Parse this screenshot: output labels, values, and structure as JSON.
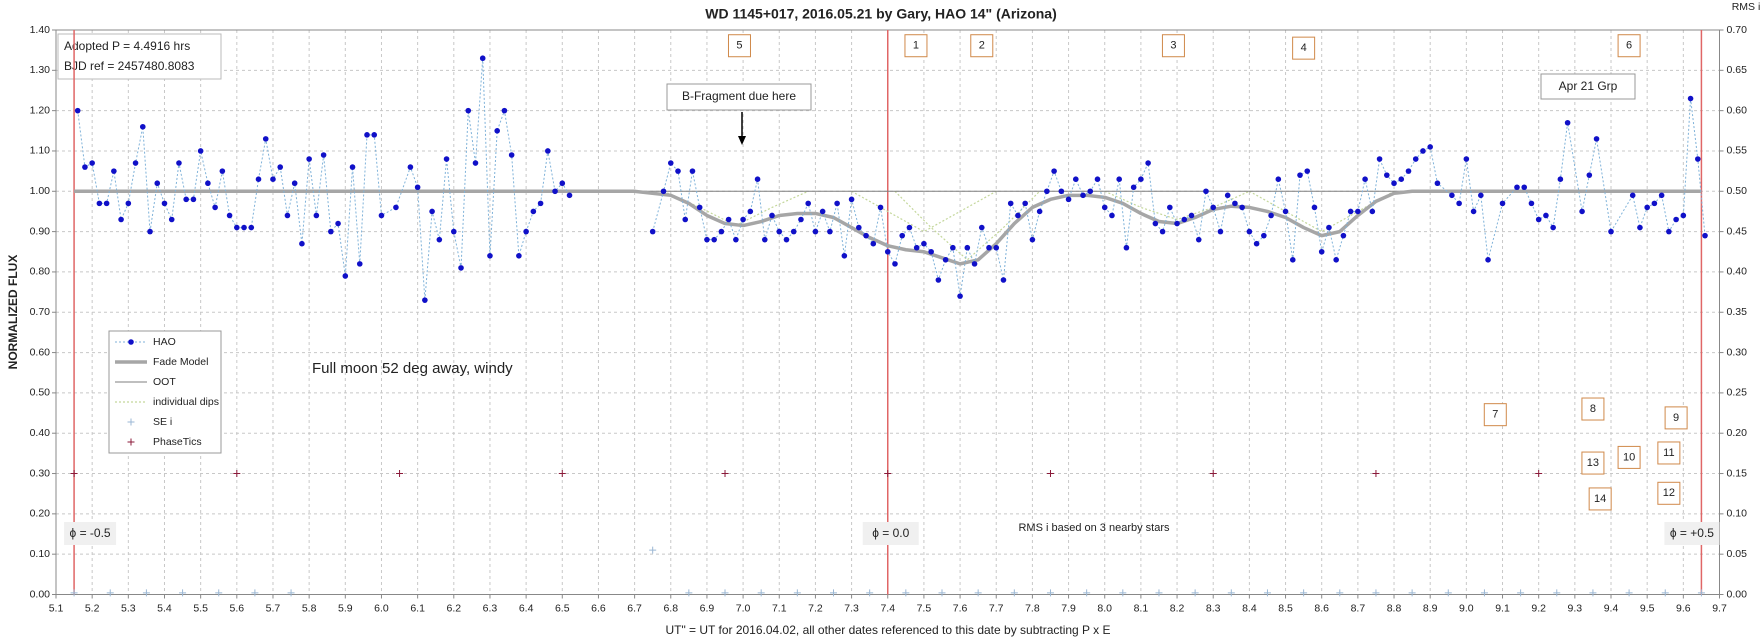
{
  "chart_data": {
    "type": "scatter",
    "title": "WD 1145+017,  2016.05.21  by Gary, HAO  14\" (Arizona)",
    "xlabel": "UT\" = UT for 2016.04.02, all other dates referenced to this date by subtracting P x E",
    "ylabel": "NORMALIZED FLUX",
    "y2label": "RMS i",
    "xlim": [
      5.1,
      9.7
    ],
    "ylim": [
      0,
      1.4
    ],
    "y2lim": [
      0,
      0.7
    ],
    "grid": true,
    "legend": "left",
    "xticks": [
      5.1,
      5.2,
      5.3,
      5.4,
      5.5,
      5.6,
      5.7,
      5.8,
      5.9,
      {
        "value": 6,
        "label": "6.0"
      },
      6.1,
      6.2,
      6.3,
      6.4,
      6.5,
      6.6,
      6.7,
      6.8,
      6.9,
      {
        "value": 7,
        "label": "7.0"
      },
      7.1,
      7.2,
      7.3,
      7.4,
      7.5,
      7.6,
      7.7,
      7.8,
      7.9,
      {
        "value": 8,
        "label": "8.0"
      },
      8.1,
      8.2,
      8.3,
      8.4,
      8.5,
      8.6,
      8.7,
      8.8,
      8.9,
      {
        "value": 9,
        "label": "9.0"
      },
      9.1,
      9.2,
      9.3,
      9.4,
      9.5,
      9.6,
      9.7
    ],
    "yticks": [
      {
        "value": 0,
        "label": "0.00"
      },
      {
        "value": 0.1,
        "label": "0.10"
      },
      {
        "value": 0.2,
        "label": "0.20"
      },
      {
        "value": 0.3,
        "label": "0.30"
      },
      {
        "value": 0.4,
        "label": "0.40"
      },
      {
        "value": 0.5,
        "label": "0.50"
      },
      {
        "value": 0.6,
        "label": "0.60"
      },
      {
        "value": 0.7,
        "label": "0.70"
      },
      {
        "value": 0.8,
        "label": "0.80"
      },
      {
        "value": 0.9,
        "label": "0.90"
      },
      {
        "value": 1,
        "label": "1.00"
      },
      {
        "value": 1.1,
        "label": "1.10"
      },
      {
        "value": 1.2,
        "label": "1.20"
      },
      {
        "value": 1.3,
        "label": "1.30"
      },
      {
        "value": 1.4,
        "label": "1.40"
      }
    ],
    "y2ticks": [
      {
        "value": 0,
        "label": "0.00"
      },
      {
        "value": 0.05,
        "label": "0.05"
      },
      {
        "value": 0.1,
        "label": "0.10"
      },
      {
        "value": 0.15,
        "label": "0.15"
      },
      {
        "value": 0.2,
        "label": "0.20"
      },
      {
        "value": 0.25,
        "label": "0.25"
      },
      {
        "value": 0.3,
        "label": "0.30"
      },
      {
        "value": 0.35,
        "label": "0.35"
      },
      {
        "value": 0.4,
        "label": "0.40"
      },
      {
        "value": 0.45,
        "label": "0.45"
      },
      {
        "value": 0.5,
        "label": "0.50"
      },
      {
        "value": 0.55,
        "label": "0.55"
      },
      {
        "value": 0.6,
        "label": "0.60"
      },
      {
        "value": 0.65,
        "label": "0.65"
      },
      {
        "value": 0.7,
        "label": "0.70"
      }
    ],
    "series": [
      {
        "name": "HAO",
        "color": "#1010c8",
        "line_color": "#7fb2d9",
        "marker": "circle",
        "line": "dotted",
        "line_width": 1,
        "x": [
          5.16,
          5.18,
          5.2,
          5.22,
          5.24,
          5.26,
          5.28,
          5.3,
          5.32,
          5.34,
          5.36,
          5.38,
          5.4,
          5.42,
          5.44,
          5.46,
          5.48,
          5.5,
          5.52,
          5.54,
          5.56,
          5.58,
          5.6,
          5.62,
          5.64,
          5.66,
          5.68,
          5.7,
          5.72,
          5.74,
          5.76,
          5.78,
          5.8,
          5.82,
          5.84,
          5.86,
          5.88,
          5.9,
          5.92,
          5.94,
          5.96,
          5.98,
          6.0,
          6.04,
          6.08,
          6.1,
          6.12,
          6.14,
          6.16,
          6.18,
          6.2,
          6.22,
          6.24,
          6.26,
          6.28,
          6.3,
          6.32,
          6.34,
          6.36,
          6.38,
          6.4,
          6.42,
          6.44,
          6.46,
          6.48,
          6.5,
          6.52,
          null,
          6.75,
          6.78,
          6.8,
          6.82,
          6.84,
          6.86,
          6.88,
          6.9,
          6.92,
          6.94,
          6.96,
          6.98,
          7.0,
          7.02,
          7.04,
          7.06,
          7.08,
          7.1,
          7.12,
          7.14,
          7.16,
          7.18,
          7.2,
          7.22,
          7.24,
          7.26,
          7.28,
          7.3,
          7.32,
          7.34,
          7.36,
          7.38,
          7.4,
          7.42,
          7.44,
          7.46,
          7.48,
          7.5,
          7.52,
          7.54,
          7.56,
          7.58,
          7.6,
          7.62,
          7.64,
          7.66,
          7.68,
          7.7,
          7.72,
          7.74,
          7.76,
          7.78,
          7.8,
          7.82,
          7.84,
          7.86,
          7.88,
          7.9,
          7.92,
          7.94,
          7.96,
          7.98,
          8.0,
          8.02,
          8.04,
          8.06,
          8.08,
          8.1,
          8.12,
          8.14,
          8.16,
          8.18,
          8.2,
          8.22,
          8.24,
          8.26,
          8.28,
          8.3,
          8.32,
          8.34,
          8.36,
          8.38,
          8.4,
          8.42,
          8.44,
          8.46,
          8.48,
          8.5,
          8.52,
          8.54,
          8.56,
          8.58,
          8.6,
          8.62,
          8.64,
          8.66,
          8.68,
          8.7,
          8.72,
          8.74,
          8.76,
          8.78,
          8.8,
          8.82,
          8.84,
          8.86,
          8.88,
          8.9,
          8.92,
          8.96,
          8.98,
          9.0,
          9.02,
          9.04,
          9.06,
          9.1,
          9.14,
          9.16,
          9.18,
          9.2,
          9.22,
          9.24,
          9.26,
          9.28,
          9.32,
          9.34,
          9.36,
          9.4,
          9.46,
          9.48,
          9.5,
          9.52,
          9.54,
          9.56,
          9.58,
          9.6,
          9.62,
          9.64,
          9.66
        ],
        "values": [
          1.2,
          1.06,
          1.07,
          0.97,
          0.97,
          1.05,
          0.93,
          0.97,
          1.07,
          1.16,
          0.9,
          1.02,
          0.97,
          0.93,
          1.07,
          0.98,
          0.98,
          1.1,
          1.02,
          0.96,
          1.05,
          0.94,
          0.91,
          0.91,
          0.91,
          1.03,
          1.13,
          1.03,
          1.06,
          0.94,
          1.02,
          0.87,
          1.08,
          0.94,
          1.09,
          0.9,
          0.92,
          0.79,
          1.06,
          0.82,
          1.14,
          1.14,
          0.94,
          0.96,
          1.06,
          1.01,
          0.73,
          0.95,
          0.88,
          1.08,
          0.9,
          0.81,
          1.2,
          1.07,
          1.33,
          0.84,
          1.15,
          1.2,
          1.09,
          0.84,
          0.9,
          0.95,
          0.97,
          1.1,
          1.0,
          1.02,
          0.99,
          null,
          0.9,
          1.0,
          1.07,
          1.05,
          0.93,
          1.05,
          0.96,
          0.88,
          0.88,
          0.9,
          0.93,
          0.88,
          0.93,
          0.95,
          1.03,
          0.88,
          0.94,
          0.9,
          0.88,
          0.9,
          0.93,
          0.97,
          0.9,
          0.95,
          0.9,
          0.97,
          0.84,
          0.98,
          0.91,
          0.89,
          0.87,
          0.96,
          0.85,
          0.82,
          0.89,
          0.91,
          0.86,
          0.87,
          0.85,
          0.78,
          0.83,
          0.86,
          0.74,
          0.86,
          0.82,
          0.91,
          0.86,
          0.86,
          0.78,
          0.97,
          0.94,
          0.97,
          0.88,
          0.95,
          1.0,
          1.05,
          1.0,
          0.98,
          1.03,
          0.99,
          1.0,
          1.03,
          0.96,
          0.94,
          1.03,
          0.86,
          1.01,
          1.03,
          1.07,
          0.92,
          0.9,
          0.96,
          0.92,
          0.93,
          0.94,
          0.88,
          1.0,
          0.96,
          0.9,
          0.99,
          0.97,
          0.96,
          0.9,
          0.87,
          0.89,
          0.94,
          1.03,
          0.95,
          0.83,
          1.04,
          1.05,
          0.96,
          0.85,
          0.91,
          0.83,
          0.89,
          0.95,
          0.95,
          1.03,
          0.95,
          1.08,
          1.04,
          1.02,
          1.03,
          1.05,
          1.08,
          1.1,
          1.11,
          1.02,
          0.99,
          0.97,
          1.08,
          0.95,
          0.99,
          0.83,
          0.97,
          1.01,
          1.01,
          0.97,
          0.93,
          0.94,
          0.91,
          1.03,
          1.17,
          0.95,
          1.04,
          1.13,
          0.9,
          0.99,
          0.91,
          0.96,
          0.97,
          0.99,
          0.9,
          0.93,
          0.94,
          1.23,
          1.08,
          0.89
        ]
      },
      {
        "name": "Fade Model",
        "color": "#a6a6a6",
        "marker": null,
        "line": "solid",
        "line_width": 3.5,
        "x": [
          5.15,
          6.7,
          6.8,
          6.85,
          6.9,
          6.95,
          7.0,
          7.05,
          7.1,
          7.15,
          7.2,
          7.25,
          7.3,
          7.35,
          7.4,
          7.45,
          7.5,
          7.55,
          7.6,
          7.65,
          7.7,
          7.75,
          7.8,
          7.85,
          7.9,
          7.95,
          8.0,
          8.05,
          8.1,
          8.15,
          8.2,
          8.25,
          8.3,
          8.35,
          8.4,
          8.45,
          8.5,
          8.55,
          8.6,
          8.65,
          8.7,
          8.75,
          8.8,
          8.85,
          8.9,
          9.65
        ],
        "values": [
          1.0,
          1.0,
          0.99,
          0.97,
          0.94,
          0.92,
          0.915,
          0.925,
          0.94,
          0.945,
          0.945,
          0.935,
          0.91,
          0.885,
          0.865,
          0.855,
          0.85,
          0.835,
          0.82,
          0.83,
          0.87,
          0.92,
          0.96,
          0.98,
          0.99,
          0.99,
          0.985,
          0.97,
          0.945,
          0.925,
          0.92,
          0.935,
          0.955,
          0.963,
          0.96,
          0.95,
          0.935,
          0.91,
          0.89,
          0.9,
          0.94,
          0.975,
          0.995,
          1.0,
          1.0,
          1.0
        ]
      },
      {
        "name": "OOT",
        "color": "#7f7f7f",
        "marker": null,
        "line": "solid",
        "line_width": 1,
        "x": [
          5.15,
          9.65
        ],
        "values": [
          1.0,
          1.0
        ]
      },
      {
        "name": "individual dips",
        "color": "#c4d79b",
        "marker": null,
        "line": "dotted",
        "line_width": 1.2,
        "x": [
          6.78,
          6.88,
          6.98,
          7.08,
          7.18,
          null,
          7.3,
          7.4,
          7.5,
          7.6,
          7.7,
          null,
          7.42,
          7.52,
          7.62,
          7.72,
          7.82,
          null,
          8.0,
          8.1,
          8.2,
          8.3,
          8.4,
          null,
          8.4,
          8.5,
          8.6,
          8.7,
          8.8
        ],
        "values": [
          1.0,
          0.96,
          0.915,
          0.96,
          1.0,
          null,
          1.0,
          0.95,
          0.9,
          0.95,
          1.0,
          null,
          1.0,
          0.91,
          0.83,
          0.91,
          1.0,
          null,
          1.0,
          0.96,
          0.93,
          0.96,
          1.0,
          null,
          1.0,
          0.95,
          0.9,
          0.95,
          1.0
        ]
      },
      {
        "name": "SE i",
        "color": "#9bb7d4",
        "marker": "plus",
        "line": null,
        "axis": "y2",
        "x": [
          5.15,
          5.25,
          5.35,
          5.45,
          5.55,
          5.65,
          5.75,
          6.75,
          6.85,
          6.95,
          7.05,
          7.15,
          7.25,
          7.35,
          7.45,
          7.55,
          7.65,
          7.75,
          7.85,
          7.95,
          8.05,
          8.15,
          8.25,
          8.35,
          8.45,
          8.55,
          8.65,
          8.75,
          8.85,
          8.95,
          9.05,
          9.15,
          9.25,
          9.35,
          9.45,
          9.55,
          9.65
        ],
        "values": [
          0.002,
          0.002,
          0.002,
          0.002,
          0.002,
          0.002,
          0.002,
          0.055,
          0.002,
          0.002,
          0.002,
          0.002,
          0.002,
          0.002,
          0.002,
          0.002,
          0.002,
          0.002,
          0.002,
          0.002,
          0.002,
          0.002,
          0.002,
          0.002,
          0.002,
          0.002,
          0.002,
          0.002,
          0.002,
          0.002,
          0.002,
          0.002,
          0.002,
          0.002,
          0.002,
          0.002,
          0.002
        ]
      },
      {
        "name": "PhaseTics",
        "color": "#8b1a3a",
        "marker": "plus",
        "line": null,
        "x": [
          5.15,
          5.6,
          6.05,
          6.5,
          6.95,
          7.4,
          7.85,
          8.3,
          8.75,
          9.2
        ],
        "values": [
          0.3,
          0.3,
          0.3,
          0.3,
          0.3,
          0.3,
          0.3,
          0.3,
          0.3,
          0.3
        ]
      }
    ],
    "phase_markers": [
      {
        "x": 5.15,
        "label": "ϕ = -0.5"
      },
      {
        "x": 7.4,
        "label": "ϕ = 0.0"
      },
      {
        "x": 9.65,
        "label": "ϕ = +0.5"
      }
    ],
    "phase_marker_color": "#e06666",
    "dip_labels": [
      "5",
      "1",
      "2",
      "3",
      "4",
      "6",
      "7",
      "8",
      "9",
      "10",
      "11",
      "12",
      "13",
      "14"
    ],
    "annotations": {
      "period": "Adopted P = 4.4916 hrs",
      "bjd": "BJD ref = 2457480.8083",
      "fragment": "B-Fragment due here",
      "group": "Apr 21 Grp",
      "moon": "Full moon 52 deg away, windy",
      "rms_note": "RMS i based on 3 nearby stars"
    }
  }
}
